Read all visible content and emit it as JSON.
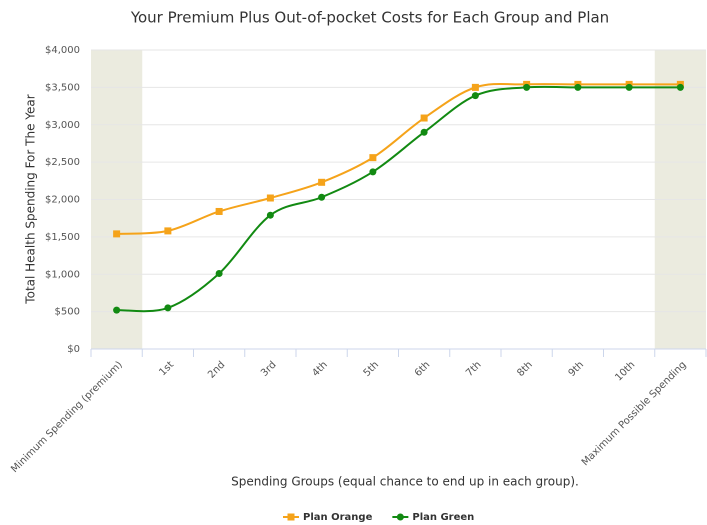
{
  "chart_data": {
    "type": "line",
    "title": "Your Premium Plus Out-of-pocket Costs for Each Group and Plan",
    "x_label": "Spending Groups (equal chance to end up in each group).",
    "y_label": "Total Health Spending For The Year",
    "categories": [
      "Minimum Spending (premium)",
      "1st",
      "2nd",
      "3rd",
      "4th",
      "5th",
      "6th",
      "7th",
      "8th",
      "9th",
      "10th",
      "Maximum Possible Spending"
    ],
    "series": [
      {
        "name": "Plan Orange",
        "color": "#f5a31a",
        "marker": "square",
        "values": [
          1540,
          1580,
          1840,
          2020,
          2230,
          2560,
          3090,
          3500,
          3540,
          3540,
          3540,
          3540
        ]
      },
      {
        "name": "Plan Green",
        "color": "#128a12",
        "marker": "circle",
        "values": [
          520,
          550,
          1010,
          1790,
          2030,
          2370,
          2900,
          3390,
          3500,
          3500,
          3500,
          3500
        ]
      }
    ],
    "ylim": [
      0,
      4000
    ],
    "yticks": [
      {
        "value": 0,
        "label": "$0"
      },
      {
        "value": 500,
        "label": "$500"
      },
      {
        "value": 1000,
        "label": "$1,000"
      },
      {
        "value": 1500,
        "label": "$1,500"
      },
      {
        "value": 2000,
        "label": "$2,000"
      },
      {
        "value": 2500,
        "label": "$2,500"
      },
      {
        "value": 3000,
        "label": "$3,000"
      },
      {
        "value": 3500,
        "label": "$3,500"
      },
      {
        "value": 4000,
        "label": "$4,000"
      }
    ],
    "grid": true,
    "legend": "bottom"
  }
}
